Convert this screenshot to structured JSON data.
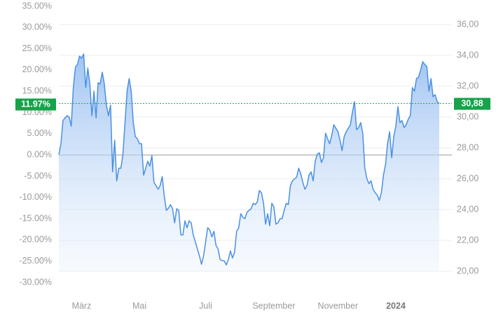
{
  "chart_data": {
    "type": "line",
    "categories": [
      null,
      null,
      null,
      null,
      null,
      null,
      null,
      null,
      null,
      null,
      null,
      "März",
      null,
      null,
      null,
      null,
      null,
      null,
      null,
      null,
      null,
      null,
      null,
      null,
      null,
      null,
      null,
      null,
      null,
      null,
      null,
      null,
      null,
      null,
      null,
      null,
      null,
      null,
      null,
      "Mai",
      null,
      null,
      null,
      null,
      null,
      null,
      null,
      null,
      null,
      null,
      null,
      null,
      null,
      null,
      null,
      null,
      null,
      null,
      null,
      null,
      null,
      null,
      null,
      null,
      null,
      null,
      null,
      null,
      null,
      null,
      null,
      "Juli",
      null,
      null,
      null,
      null,
      null,
      null,
      null,
      null,
      null,
      null,
      null,
      null,
      null,
      null,
      null,
      null,
      null,
      null,
      null,
      null,
      null,
      null,
      null,
      null,
      null,
      null,
      null,
      null,
      null,
      null,
      null,
      null,
      "September",
      null,
      null,
      null,
      null,
      null,
      null,
      null,
      null,
      null,
      null,
      null,
      null,
      null,
      null,
      null,
      null,
      null,
      null,
      null,
      null,
      null,
      null,
      null,
      null,
      null,
      null,
      null,
      null,
      null,
      null,
      "November",
      null,
      null,
      null,
      null,
      null,
      null,
      null,
      null,
      null,
      null,
      null,
      null,
      null,
      null,
      null,
      null,
      null,
      null,
      null,
      null,
      null,
      null,
      null,
      null,
      null,
      null,
      null,
      "2024",
      null,
      null,
      null,
      null,
      null,
      null,
      null,
      null,
      null,
      null,
      null,
      null,
      null,
      null,
      null,
      null,
      null,
      null,
      null,
      null,
      null
    ],
    "series": [
      {
        "color": "#4a90e2",
        "axis": "y2",
        "values": [
          27.55,
          28.27,
          29.77,
          29.95,
          30.09,
          30.0,
          29.41,
          31.91,
          33.23,
          33.41,
          33.95,
          33.82,
          34.09,
          31.91,
          33.18,
          32.14,
          30.09,
          31.68,
          29.95,
          32.23,
          32.14,
          32.91,
          32.14,
          30.77,
          30.09,
          30.77,
          26.45,
          28.5,
          25.86,
          26.68,
          26.68,
          27.59,
          29.64,
          31.68,
          32.5,
          31.68,
          29.64,
          28.73,
          28.59,
          28.27,
          28.27,
          26.23,
          26.68,
          27.14,
          26.82,
          27.5,
          25.77,
          25.55,
          25.32,
          25.55,
          26.14,
          24.86,
          23.95,
          24.09,
          24.32,
          24.05,
          23.14,
          24.05,
          23.95,
          22.36,
          22.36,
          23.27,
          22.82,
          23.27,
          23.14,
          22.36,
          21.91,
          21.45,
          21.0,
          20.45,
          21.0,
          21.91,
          22.82,
          22.68,
          22.23,
          22.59,
          21.68,
          21.45,
          20.77,
          20.68,
          20.68,
          20.41,
          20.77,
          21.32,
          20.86,
          21.23,
          22.59,
          22.82,
          23.73,
          23.5,
          23.41,
          23.82,
          23.95,
          24.05,
          24.41,
          24.32,
          24.5,
          25.23,
          25.09,
          24.41,
          23.05,
          23.73,
          22.95,
          24.41,
          24.18,
          23.05,
          23.14,
          23.41,
          23.41,
          23.95,
          24.41,
          24.32,
          25.55,
          25.86,
          26.0,
          26.09,
          26.68,
          26.32,
          25.77,
          25.32,
          25.55,
          26.23,
          26.45,
          25.86,
          27.14,
          27.59,
          27.68,
          27.05,
          27.36,
          28.95,
          28.59,
          28.27,
          28.82,
          29.5,
          29.27,
          29.05,
          28.5,
          27.82,
          28.73,
          29.05,
          29.27,
          29.5,
          30.32,
          31.0,
          29.18,
          29.32,
          29.64,
          28.95,
          26.68,
          26.0,
          25.68,
          25.86,
          25.32,
          25.09,
          24.95,
          24.59,
          25.09,
          26.23,
          26.91,
          28.27,
          29.05,
          27.36,
          28.73,
          29.41,
          30.68,
          29.64,
          29.77,
          29.32,
          29.5,
          29.86,
          30.09,
          31.91,
          31.68,
          32.5,
          32.59,
          33.05,
          33.59,
          33.41,
          33.27,
          31.68,
          32.5,
          31.32,
          31.45,
          31.0,
          30.88
        ]
      }
    ],
    "ylim": [
      -30,
      35
    ],
    "yticks": [
      {
        "value": 35,
        "label": "35.00%"
      },
      {
        "value": 30,
        "label": "30.00%"
      },
      {
        "value": 25,
        "label": "25.00%"
      },
      {
        "value": 20,
        "label": "20.00%"
      },
      {
        "value": 15,
        "label": "15.00%"
      },
      {
        "value": 10,
        "label": "10.00%"
      },
      {
        "value": 5,
        "label": "5.00%"
      },
      {
        "value": 0,
        "label": "0.00%"
      },
      {
        "value": -5,
        "label": "-5.00%"
      },
      {
        "value": -10,
        "label": "-10.00%"
      },
      {
        "value": -15,
        "label": "-15.00%"
      },
      {
        "value": -20,
        "label": "-20.00%"
      },
      {
        "value": -25,
        "label": "-25.00%"
      },
      {
        "value": -30,
        "label": "-30.00%"
      }
    ],
    "y2lim": [
      20,
      36
    ],
    "y2ticks": [
      {
        "value": 36,
        "label": "36,00"
      },
      {
        "value": 34,
        "label": "34,00"
      },
      {
        "value": 32,
        "label": "32,00"
      },
      {
        "value": 30,
        "label": "30,00"
      },
      {
        "value": 28,
        "label": "28,00"
      },
      {
        "value": 26,
        "label": "26,00"
      },
      {
        "value": 24,
        "label": "24,00"
      },
      {
        "value": 22,
        "label": "22,00"
      },
      {
        "value": 20,
        "label": "20,00"
      }
    ],
    "grid": true,
    "current_percent": {
      "value": 11.97,
      "label": "11.97%"
    },
    "current_price": {
      "value": 30.88,
      "label": "30,88"
    },
    "marker_color": "#16a34a"
  }
}
